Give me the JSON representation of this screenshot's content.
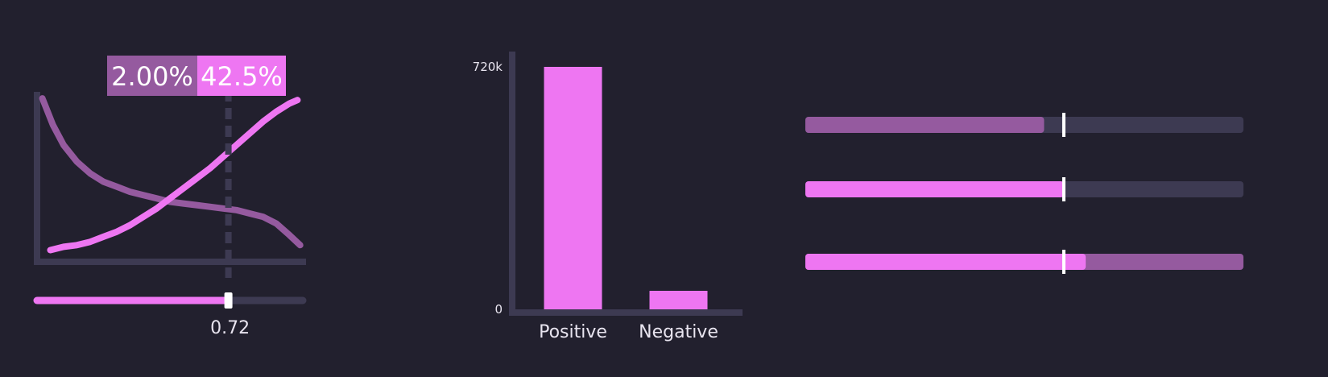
{
  "colors": {
    "background": "#22202e",
    "axis": "#3d3a52",
    "primary": "#ee76f2",
    "secondary": "#955a9f",
    "thumb": "#ffffff",
    "text": "#ffffff",
    "tick_text": "#e8e4ef"
  },
  "chart_data": [
    {
      "type": "line",
      "title": "",
      "threshold": 0.72,
      "threshold_label": "0.72",
      "readouts": {
        "left": "2.00%",
        "right": "42.5%"
      },
      "xlim": [
        0,
        1
      ],
      "ylim": [
        0,
        1
      ],
      "series": [
        {
          "color": "#955a9f",
          "x": [
            0.02,
            0.06,
            0.1,
            0.15,
            0.2,
            0.25,
            0.3,
            0.35,
            0.4,
            0.45,
            0.5,
            0.55,
            0.6,
            0.65,
            0.7,
            0.75,
            0.8,
            0.85,
            0.9,
            0.95,
            0.99
          ],
          "y": [
            0.98,
            0.82,
            0.7,
            0.6,
            0.53,
            0.48,
            0.45,
            0.42,
            0.4,
            0.38,
            0.36,
            0.35,
            0.34,
            0.33,
            0.32,
            0.31,
            0.29,
            0.27,
            0.23,
            0.16,
            0.1
          ]
        },
        {
          "color": "#ee76f2",
          "x": [
            0.05,
            0.1,
            0.15,
            0.2,
            0.25,
            0.3,
            0.35,
            0.4,
            0.45,
            0.5,
            0.55,
            0.6,
            0.65,
            0.7,
            0.75,
            0.8,
            0.85,
            0.9,
            0.95,
            0.98
          ],
          "y": [
            0.07,
            0.09,
            0.1,
            0.12,
            0.15,
            0.18,
            0.22,
            0.27,
            0.32,
            0.38,
            0.44,
            0.5,
            0.56,
            0.63,
            0.7,
            0.77,
            0.84,
            0.9,
            0.95,
            0.97
          ]
        }
      ]
    },
    {
      "type": "bar",
      "title": "",
      "categories": [
        "Positive",
        "Negative"
      ],
      "values": [
        720000,
        55000
      ],
      "ylim": [
        0,
        720000
      ],
      "yticks": [
        {
          "value": 0,
          "label": "0"
        },
        {
          "value": 720000,
          "label": "720k"
        }
      ],
      "color": "#ee76f2"
    },
    {
      "type": "bar",
      "orientation": "horizontal",
      "title": "",
      "marker": 0.59,
      "rows": [
        {
          "fill": 0.545,
          "color": "#955a9f",
          "rest_color": "#3d3a52"
        },
        {
          "fill": 0.59,
          "color": "#ee76f2",
          "rest_color": "#3d3a52"
        },
        {
          "fill": 0.64,
          "color": "#ee76f2",
          "rest_color": "#955a9f"
        }
      ]
    }
  ]
}
